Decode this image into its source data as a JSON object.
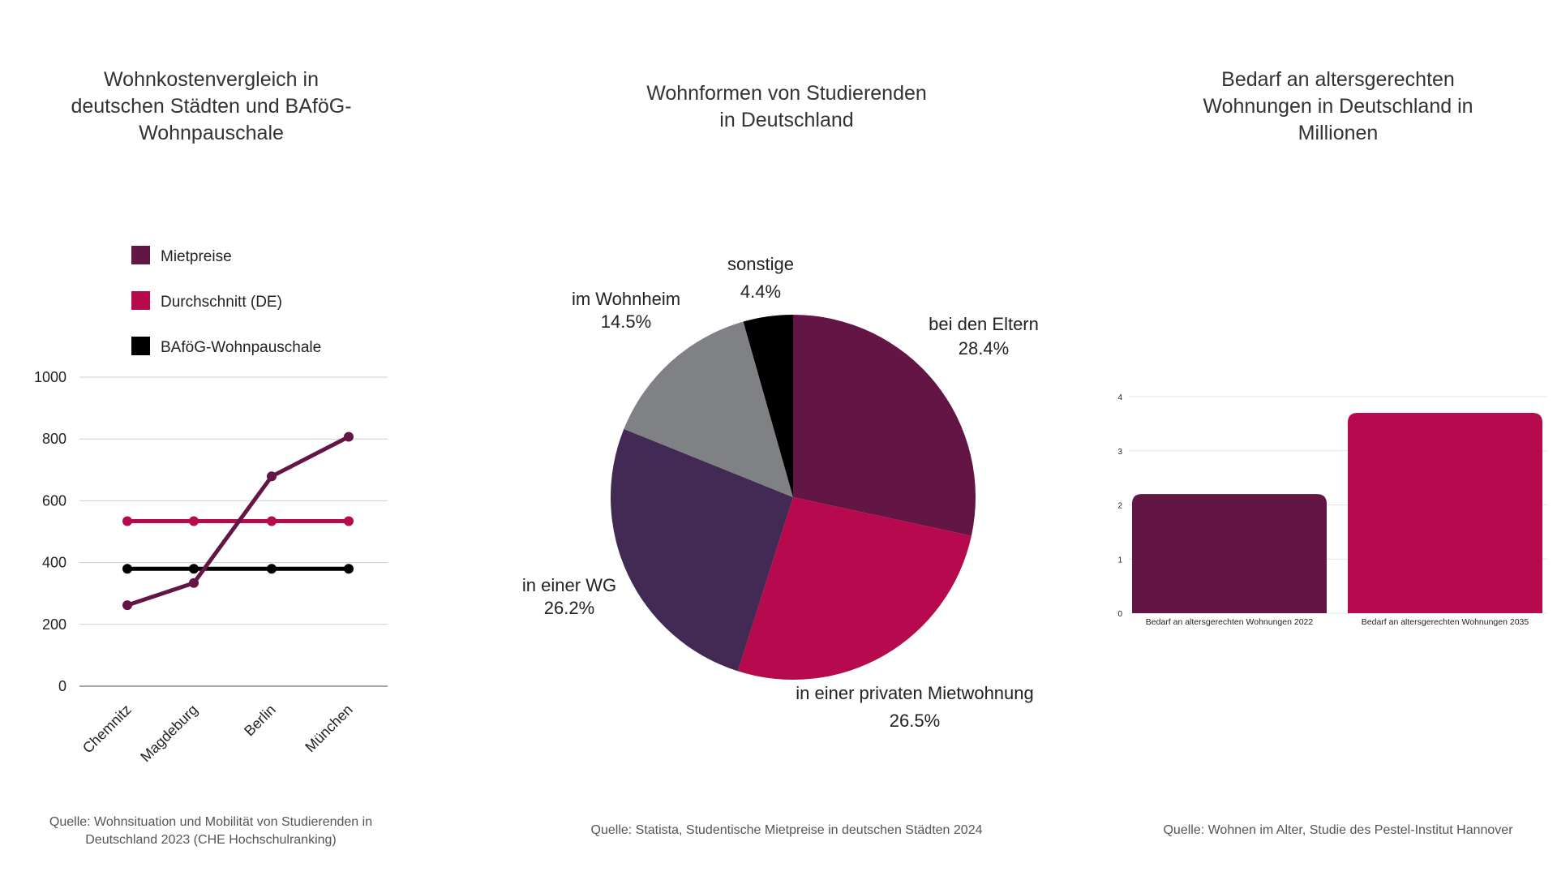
{
  "charts": {
    "rent": {
      "title": "Wohnkostenvergleich in deutschen Städten und BAföG-Wohnpauschale",
      "source": "Quelle: Wohnsituation und Mobilität von Studierenden in Deutschland 2023 (CHE Hochschulranking)"
    },
    "housing": {
      "title": "Wohnformen von Studierenden in Deutschland",
      "source": "Quelle: Statista, Studentische Mietpreise in deutschen Städten 2024"
    },
    "elderly": {
      "title": "Bedarf an altersgerechten Wohnungen in Deutschland in Millionen",
      "source": "Quelle: Wohnen im Alter, Studie des Pestel-Institut Hannover"
    }
  },
  "chart_data": [
    {
      "type": "line",
      "title": "Wohnkostenvergleich in deutschen Städten und BAföG-Wohnpauschale",
      "categories": [
        "Chemnitz",
        "Magdeburg",
        "Berlin",
        "München"
      ],
      "ylim": [
        0,
        1000
      ],
      "yticks": [
        0,
        200,
        400,
        600,
        800,
        1000
      ],
      "grid": true,
      "legend_position": "top-left",
      "series": [
        {
          "name": "Mietpreise",
          "values": [
            262,
            334,
            679,
            807
          ],
          "color": "#631646"
        },
        {
          "name": "Durchschnitt (DE)",
          "values": [
            534,
            534,
            534,
            534
          ],
          "color": "#b7094e"
        },
        {
          "name": "BAföG-Wohnpauschale",
          "values": [
            380,
            380,
            380,
            380
          ],
          "color": "#000000"
        }
      ]
    },
    {
      "type": "pie",
      "title": "Wohnformen von Studierenden in Deutschland",
      "slices": [
        {
          "label": "bei den Eltern",
          "value": 28.4,
          "display": "28.4%",
          "color": "#631646"
        },
        {
          "label": "in einer privaten Mietwohnung",
          "value": 26.5,
          "display": "26.5%",
          "color": "#b7094e"
        },
        {
          "label": "in einer WG",
          "value": 26.2,
          "display": "26.2%",
          "color": "#432a55"
        },
        {
          "label": "im Wohnheim",
          "value": 14.5,
          "display": "14.5%",
          "color": "#808184"
        },
        {
          "label": "sonstige",
          "value": 4.4,
          "display": "4.4%",
          "color": "#000000"
        }
      ]
    },
    {
      "type": "bar",
      "title": "Bedarf an altersgerechten Wohnungen in Deutschland in Millionen",
      "categories": [
        "Bedarf an altersgerechten Wohnungen 2022",
        "Bedarf an altersgerechten Wohnungen 2035"
      ],
      "values": [
        2.2,
        3.7
      ],
      "colors": [
        "#631646",
        "#b7094e"
      ],
      "ylim": [
        0,
        4
      ],
      "yticks": [
        0,
        1,
        2,
        3,
        4
      ],
      "grid": true
    }
  ]
}
